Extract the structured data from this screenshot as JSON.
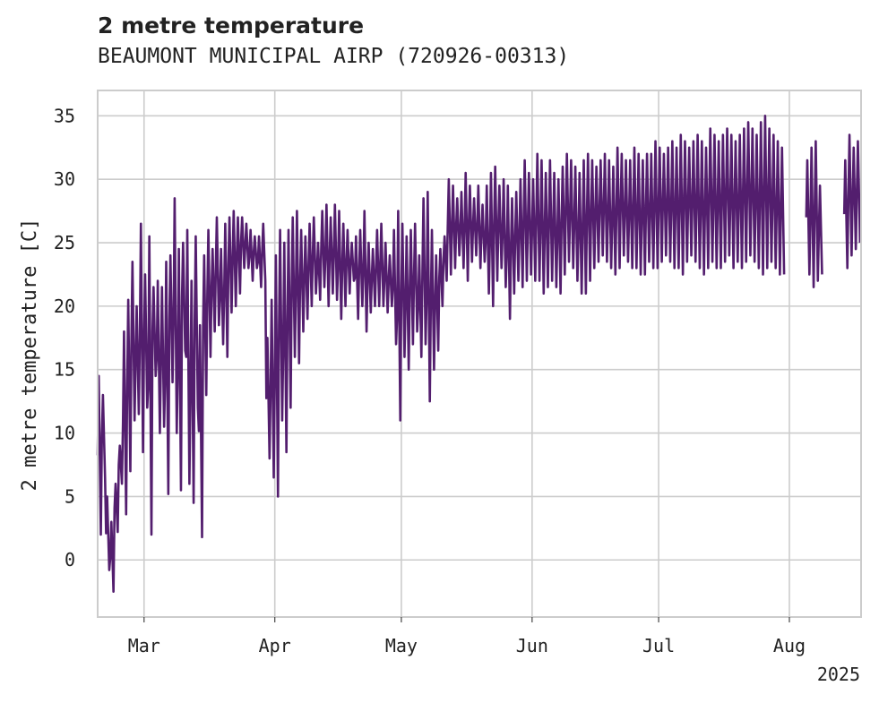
{
  "chart_data": {
    "type": "line",
    "title": "2 metre temperature",
    "subtitle": "BEAUMONT MUNICIPAL AIRP (720926-00313)",
    "xlabel": "",
    "ylabel": "2 metre temperature [C]",
    "ylim": [
      -4.5,
      37
    ],
    "xlim": [
      "2025-02-18",
      "2025-08-18"
    ],
    "x_ticks": [
      "2025-03-01",
      "2025-04-01",
      "2025-05-01",
      "2025-06-01",
      "2025-07-01",
      "2025-08-01"
    ],
    "x_tick_labels": [
      "Mar",
      "Apr",
      "May",
      "Jun",
      "Jul",
      "Aug"
    ],
    "x_offset_label": "2025",
    "y_ticks": [
      0,
      5,
      10,
      15,
      20,
      25,
      30,
      35
    ],
    "grid": true,
    "colors": {
      "line": "#531e6e",
      "grid": "#cccccc",
      "frame": "#cccccc"
    },
    "series": [
      {
        "name": "",
        "segments": [
          {
            "x": [
              "2025-02-18",
              "2025-02-19",
              "2025-02-20",
              "2025-02-21",
              "2025-02-22",
              "2025-02-23",
              "2025-02-24",
              "2025-02-25",
              "2025-02-26",
              "2025-02-27",
              "2025-02-28",
              "2025-03-01",
              "2025-03-02",
              "2025-03-03",
              "2025-03-04",
              "2025-03-05",
              "2025-03-06",
              "2025-03-07",
              "2025-03-08",
              "2025-03-09",
              "2025-03-10",
              "2025-03-11",
              "2025-03-12",
              "2025-03-13",
              "2025-03-14",
              "2025-03-15",
              "2025-03-16",
              "2025-03-17",
              "2025-03-18",
              "2025-03-19",
              "2025-03-20",
              "2025-03-21",
              "2025-03-22",
              "2025-03-23",
              "2025-03-24",
              "2025-03-25",
              "2025-03-26",
              "2025-03-27",
              "2025-03-28",
              "2025-03-29",
              "2025-03-30",
              "2025-03-31",
              "2025-04-01",
              "2025-04-02",
              "2025-04-03",
              "2025-04-04",
              "2025-04-05",
              "2025-04-06",
              "2025-04-07",
              "2025-04-08",
              "2025-04-09",
              "2025-04-10",
              "2025-04-11",
              "2025-04-12",
              "2025-04-13",
              "2025-04-14",
              "2025-04-15",
              "2025-04-16",
              "2025-04-17",
              "2025-04-18",
              "2025-04-19",
              "2025-04-20",
              "2025-04-21",
              "2025-04-22",
              "2025-04-23",
              "2025-04-24",
              "2025-04-25",
              "2025-04-26",
              "2025-04-27",
              "2025-04-28",
              "2025-04-29",
              "2025-04-30",
              "2025-05-01",
              "2025-05-02",
              "2025-05-03",
              "2025-05-04",
              "2025-05-05",
              "2025-05-06",
              "2025-05-07",
              "2025-05-08",
              "2025-05-09",
              "2025-05-10",
              "2025-05-11",
              "2025-05-12",
              "2025-05-13",
              "2025-05-14",
              "2025-05-15",
              "2025-05-16",
              "2025-05-17",
              "2025-05-18",
              "2025-05-19",
              "2025-05-20",
              "2025-05-21",
              "2025-05-22",
              "2025-05-23",
              "2025-05-24",
              "2025-05-25",
              "2025-05-26",
              "2025-05-27",
              "2025-05-28",
              "2025-05-29",
              "2025-05-30",
              "2025-05-31",
              "2025-06-01",
              "2025-06-02",
              "2025-06-03",
              "2025-06-04",
              "2025-06-05",
              "2025-06-06",
              "2025-06-07",
              "2025-06-08",
              "2025-06-09",
              "2025-06-10",
              "2025-06-11",
              "2025-06-12",
              "2025-06-13",
              "2025-06-14",
              "2025-06-15",
              "2025-06-16",
              "2025-06-17",
              "2025-06-18",
              "2025-06-19",
              "2025-06-20",
              "2025-06-21",
              "2025-06-22",
              "2025-06-23",
              "2025-06-24",
              "2025-06-25",
              "2025-06-26",
              "2025-06-27",
              "2025-06-28",
              "2025-06-29",
              "2025-06-30",
              "2025-07-01",
              "2025-07-02",
              "2025-07-03",
              "2025-07-04",
              "2025-07-05",
              "2025-07-06",
              "2025-07-07",
              "2025-07-08",
              "2025-07-09",
              "2025-07-10",
              "2025-07-11",
              "2025-07-12",
              "2025-07-13",
              "2025-07-14",
              "2025-07-15",
              "2025-07-16",
              "2025-07-17",
              "2025-07-18",
              "2025-07-19",
              "2025-07-20",
              "2025-07-21",
              "2025-07-22",
              "2025-07-23",
              "2025-07-24",
              "2025-07-25",
              "2025-07-26",
              "2025-07-27",
              "2025-07-28",
              "2025-07-29",
              "2025-07-30",
              "2025-07-31",
              "2025-08-01"
            ],
            "min": [
              2.0,
              6.5,
              -0.8,
              -2.5,
              2.2,
              6.0,
              3.6,
              7.0,
              11.0,
              11.5,
              8.5,
              12.0,
              2.0,
              14.5,
              10.0,
              10.5,
              5.2,
              14.0,
              10.0,
              5.5,
              16.5,
              6.0,
              4.5,
              12.0,
              1.8,
              13.0,
              16.0,
              18.0,
              18.5,
              17.0,
              16.0,
              19.5,
              20.0,
              21.0,
              23.0,
              23.0,
              22.0,
              23.0,
              21.5,
              22.0,
              8.0,
              6.5,
              5.0,
              11.0,
              8.5,
              12.0,
              16.0,
              15.5,
              18.0,
              19.0,
              20.0,
              21.0,
              20.5,
              21.5,
              20.0,
              21.0,
              20.5,
              19.0,
              20.0,
              21.0,
              22.0,
              19.0,
              20.0,
              18.0,
              19.5,
              20.0,
              20.0,
              20.0,
              19.5,
              20.0,
              17.0,
              11.0,
              16.0,
              15.0,
              17.0,
              18.0,
              16.0,
              17.0,
              12.5,
              15.0,
              16.5,
              20.0,
              22.0,
              22.5,
              23.0,
              24.0,
              23.0,
              22.0,
              23.5,
              24.0,
              23.0,
              23.5,
              21.0,
              20.0,
              22.0,
              23.0,
              21.5,
              19.0,
              21.0,
              22.0,
              21.5,
              22.0,
              22.5,
              22.0,
              22.0,
              21.0,
              21.5,
              22.0,
              21.5,
              21.0,
              22.5,
              23.5,
              23.0,
              22.0,
              21.0,
              21.0,
              22.0,
              23.0,
              23.5,
              24.0,
              23.5,
              23.0,
              22.5,
              23.0,
              24.0,
              23.5,
              23.0,
              23.0,
              22.5,
              22.5,
              23.5,
              23.0,
              23.0,
              23.5,
              24.0,
              23.5,
              23.0,
              23.0,
              22.5,
              23.5,
              24.0,
              23.5,
              23.0,
              22.5,
              23.0,
              23.5,
              23.0,
              23.0,
              23.5,
              24.0,
              23.0,
              23.5,
              23.0,
              23.5,
              24.0,
              23.5,
              23.0,
              22.5,
              23.0,
              23.5,
              23.0,
              22.5,
              22.5
            ],
            "max": [
              14.5,
              13.0,
              5.0,
              3.0,
              6.0,
              9.0,
              18.0,
              20.5,
              23.5,
              20.0,
              26.5,
              22.5,
              25.5,
              21.5,
              22.0,
              21.5,
              23.5,
              24.0,
              28.5,
              24.5,
              25.0,
              26.0,
              22.0,
              25.5,
              18.5,
              24.0,
              26.0,
              24.5,
              27.0,
              24.5,
              26.5,
              27.0,
              27.5,
              27.0,
              27.0,
              26.5,
              26.0,
              25.5,
              25.5,
              26.5,
              17.5,
              20.5,
              24.0,
              26.0,
              25.0,
              26.0,
              27.0,
              27.5,
              26.0,
              25.5,
              26.5,
              27.0,
              25.0,
              27.5,
              28.0,
              27.0,
              28.0,
              27.5,
              26.5,
              26.0,
              25.0,
              25.5,
              26.0,
              27.5,
              25.0,
              24.5,
              26.0,
              26.5,
              25.0,
              24.0,
              26.0,
              27.5,
              26.5,
              25.5,
              26.0,
              26.5,
              24.0,
              28.5,
              29.0,
              26.0,
              24.0,
              24.5,
              25.5,
              30.0,
              29.5,
              28.5,
              29.0,
              30.5,
              29.5,
              28.5,
              29.5,
              28.0,
              29.5,
              30.5,
              31.0,
              29.5,
              30.0,
              29.5,
              28.5,
              29.0,
              30.0,
              31.5,
              30.5,
              30.0,
              32.0,
              31.5,
              30.5,
              31.5,
              30.5,
              30.0,
              31.0,
              32.0,
              31.5,
              31.0,
              30.5,
              31.5,
              32.0,
              31.5,
              31.0,
              31.5,
              32.0,
              31.5,
              31.0,
              32.5,
              32.0,
              31.5,
              31.5,
              32.5,
              32.0,
              31.5,
              32.0,
              32.0,
              33.0,
              32.5,
              32.0,
              32.5,
              33.0,
              32.5,
              33.5,
              33.0,
              32.5,
              33.0,
              33.5,
              33.0,
              32.5,
              34.0,
              33.5,
              33.0,
              33.5,
              34.0,
              33.5,
              33.0,
              33.5,
              34.0,
              34.5,
              34.0,
              33.5,
              34.5,
              35.0,
              34.0,
              33.5,
              33.0,
              32.5
            ]
          },
          {
            "x": [
              "2025-08-05",
              "2025-08-06",
              "2025-08-07",
              "2025-08-08"
            ],
            "min": [
              22.5,
              21.5,
              22.0,
              22.5
            ],
            "max": [
              31.5,
              32.5,
              33.0,
              29.5
            ]
          },
          {
            "x": [
              "2025-08-14",
              "2025-08-15",
              "2025-08-16",
              "2025-08-17"
            ],
            "min": [
              23.0,
              24.0,
              24.5,
              25.0
            ],
            "max": [
              31.5,
              33.5,
              32.5,
              33.0
            ]
          }
        ]
      }
    ]
  }
}
